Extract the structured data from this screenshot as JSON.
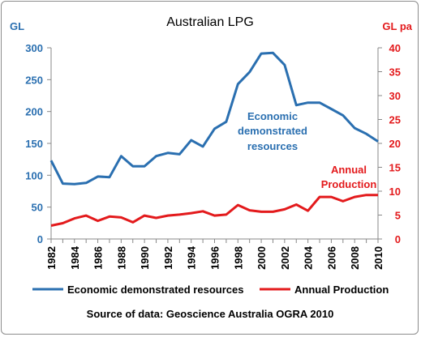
{
  "chart_data": {
    "type": "line",
    "title": "Australian LPG",
    "left_axis_unit": "GL",
    "right_axis_unit": "GL pa",
    "x_ticks": [
      "1982",
      "1984",
      "1986",
      "1988",
      "1990",
      "1992",
      "1994",
      "1996",
      "1998",
      "2000",
      "2002",
      "2004",
      "2006",
      "2008",
      "2010"
    ],
    "y_left_ticks": [
      "0",
      "50",
      "100",
      "150",
      "200",
      "250",
      "300"
    ],
    "y_right_ticks": [
      "0",
      "5",
      "10",
      "15",
      "20",
      "25",
      "30",
      "35",
      "40"
    ],
    "ylim_left": [
      0,
      300
    ],
    "ylim_right": [
      0,
      40
    ],
    "xlim": [
      1982,
      2010
    ],
    "series": [
      {
        "name": "Economic demonstrated resources",
        "axis": "left",
        "color": "#2a6fb0",
        "x": [
          1982,
          1983,
          1984,
          1985,
          1986,
          1987,
          1988,
          1989,
          1990,
          1991,
          1992,
          1993,
          1994,
          1995,
          1996,
          1997,
          1998,
          1999,
          2000,
          2001,
          2002,
          2003,
          2004,
          2005,
          2006,
          2007,
          2008,
          2009,
          2010
        ],
        "values": [
          123,
          87,
          86,
          88,
          98,
          97,
          130,
          114,
          114,
          130,
          135,
          133,
          155,
          145,
          173,
          184,
          243,
          262,
          291,
          292,
          273,
          210,
          214,
          214,
          204,
          194,
          174,
          165,
          153
        ]
      },
      {
        "name": "Annual Production",
        "axis": "right",
        "color": "#e31a1c",
        "x": [
          1982,
          1983,
          1984,
          1985,
          1986,
          1987,
          1988,
          1989,
          1990,
          1991,
          1992,
          1993,
          1994,
          1995,
          1996,
          1997,
          1998,
          1999,
          2000,
          2001,
          2002,
          2003,
          2004,
          2005,
          2006,
          2007,
          2008,
          2009,
          2010
        ],
        "values": [
          2.8,
          3.3,
          4.3,
          4.9,
          3.8,
          4.7,
          4.5,
          3.5,
          4.9,
          4.4,
          4.9,
          5.1,
          5.4,
          5.8,
          4.9,
          5.1,
          7.1,
          6.0,
          5.7,
          5.7,
          6.2,
          7.2,
          5.9,
          8.8,
          8.8,
          7.9,
          8.8,
          9.2,
          9.2
        ]
      }
    ],
    "annotations": {
      "economic": [
        "Economic",
        "demonstrated",
        "resources"
      ],
      "production": [
        "Annual",
        "Production"
      ]
    },
    "legend_placement": "bottom",
    "grid": false,
    "source": "Source of data: Geoscience Australia OGRA 2010"
  }
}
